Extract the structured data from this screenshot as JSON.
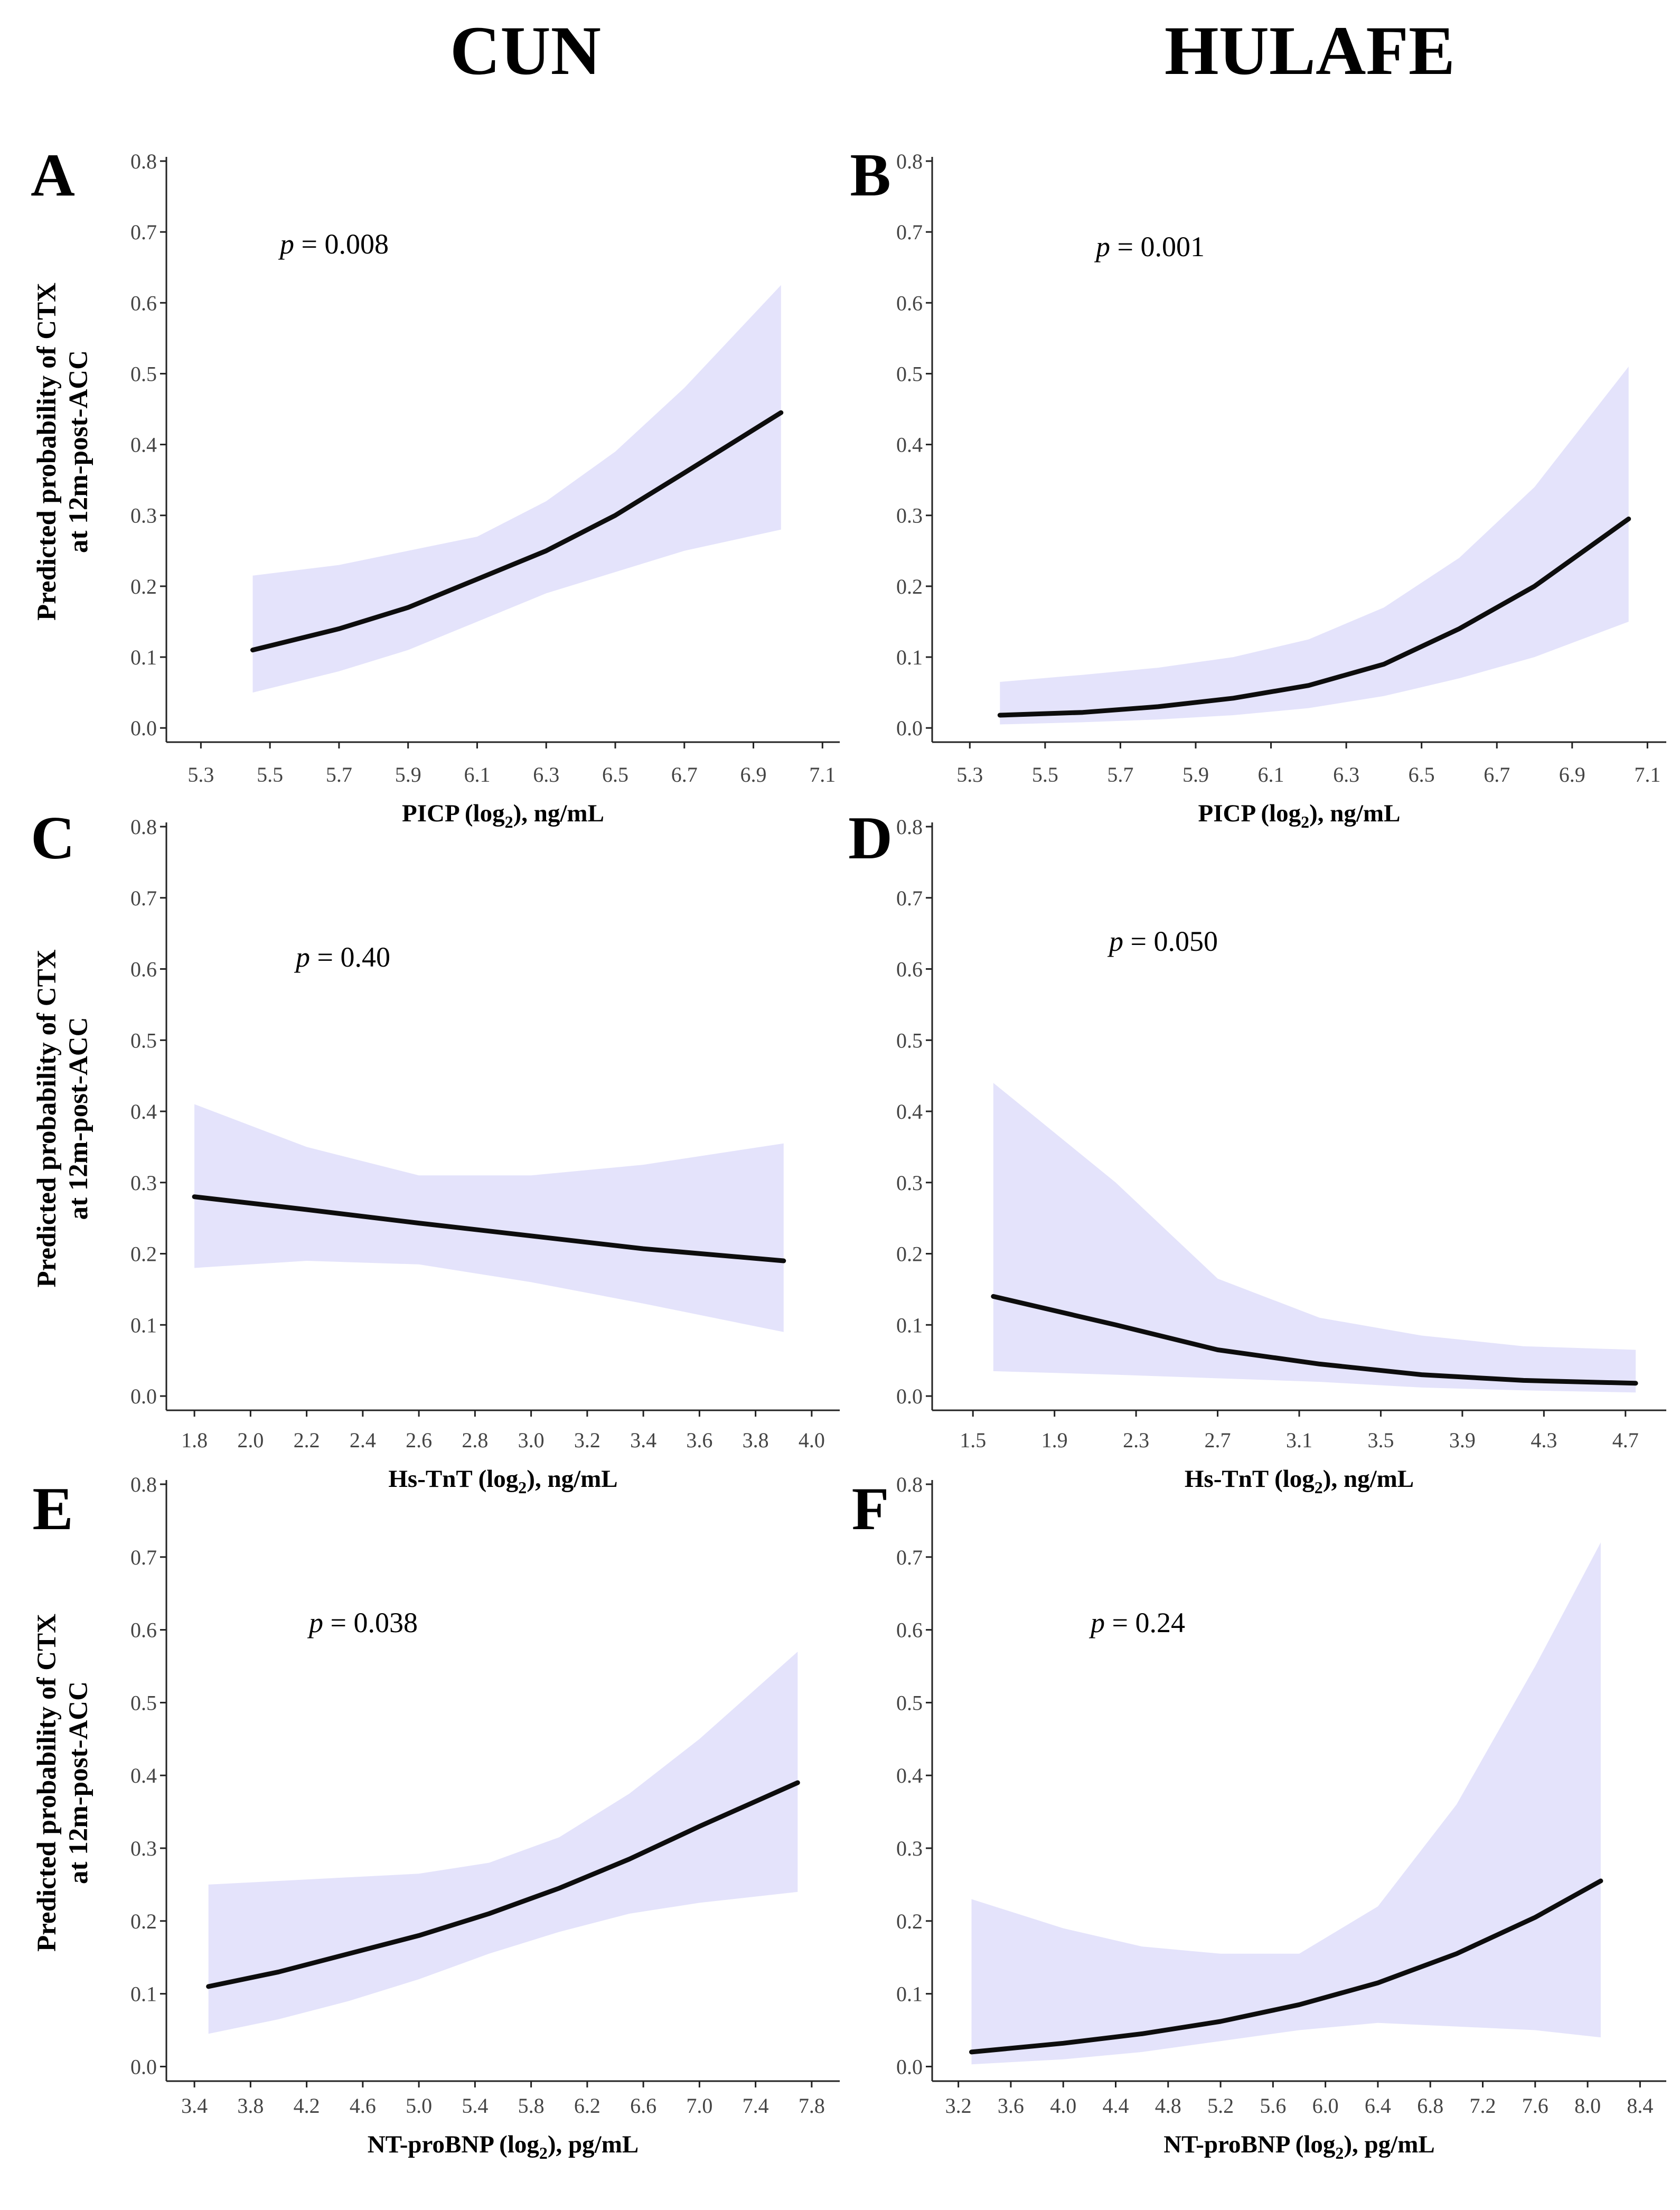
{
  "column_titles": [
    "CUN",
    "HULAFE"
  ],
  "chart_data": [
    {
      "panel": "A",
      "type": "line",
      "cohort": "CUN",
      "xlabel": "PICP (log",
      "xlabel_sub": "2",
      "xlabel_unit": "), ng/mL",
      "ylabel_line1": "Predicted probability of CTX",
      "ylabel_line2": "at 12m-post-ACC",
      "p_symbol": "p",
      "p_text": " = 0.008",
      "xlim": [
        5.2,
        7.15
      ],
      "ylim": [
        -0.02,
        0.8
      ],
      "xticks": [
        5.3,
        5.5,
        5.7,
        5.9,
        6.1,
        6.3,
        6.5,
        6.7,
        6.9,
        7.1
      ],
      "xtick_labels": [
        "5.3",
        "5.5",
        "5.7",
        "5.9",
        "6.1",
        "6.3",
        "6.5",
        "6.7",
        "6.9",
        "7.1"
      ],
      "yticks": [
        0.0,
        0.1,
        0.2,
        0.3,
        0.4,
        0.5,
        0.6,
        0.7,
        0.8
      ],
      "ytick_labels": [
        "0.0",
        "0.1",
        "0.2",
        "0.3",
        "0.4",
        "0.5",
        "0.6",
        "0.7",
        "0.8"
      ],
      "series": [
        {
          "name": "predicted",
          "x": [
            5.45,
            5.7,
            5.9,
            6.1,
            6.3,
            6.5,
            6.7,
            6.98
          ],
          "y": [
            0.11,
            0.14,
            0.17,
            0.21,
            0.25,
            0.3,
            0.36,
            0.445
          ],
          "lower": [
            0.05,
            0.08,
            0.11,
            0.15,
            0.19,
            0.22,
            0.25,
            0.28
          ],
          "upper": [
            0.215,
            0.23,
            0.25,
            0.27,
            0.32,
            0.39,
            0.48,
            0.625
          ]
        }
      ]
    },
    {
      "panel": "B",
      "type": "line",
      "cohort": "HULAFE",
      "xlabel": "PICP (log",
      "xlabel_sub": "2",
      "xlabel_unit": "), ng/mL",
      "ylabel_line1": "",
      "ylabel_line2": "",
      "p_symbol": "p",
      "p_text": " = 0.001",
      "xlim": [
        5.2,
        7.15
      ],
      "ylim": [
        -0.02,
        0.8
      ],
      "xticks": [
        5.3,
        5.5,
        5.7,
        5.9,
        6.1,
        6.3,
        6.5,
        6.7,
        6.9,
        7.1
      ],
      "xtick_labels": [
        "5.3",
        "5.5",
        "5.7",
        "5.9",
        "6.1",
        "6.3",
        "6.5",
        "6.7",
        "6.9",
        "7.1"
      ],
      "yticks": [
        0.0,
        0.1,
        0.2,
        0.3,
        0.4,
        0.5,
        0.6,
        0.7,
        0.8
      ],
      "ytick_labels": [
        "0.0",
        "0.1",
        "0.2",
        "0.3",
        "0.4",
        "0.5",
        "0.6",
        "0.7",
        "0.8"
      ],
      "series": [
        {
          "name": "predicted",
          "x": [
            5.38,
            5.6,
            5.8,
            6.0,
            6.2,
            6.4,
            6.6,
            6.8,
            7.05
          ],
          "y": [
            0.018,
            0.022,
            0.03,
            0.042,
            0.06,
            0.09,
            0.14,
            0.2,
            0.295
          ],
          "lower": [
            0.005,
            0.008,
            0.012,
            0.018,
            0.028,
            0.045,
            0.07,
            0.1,
            0.15
          ],
          "upper": [
            0.065,
            0.075,
            0.085,
            0.1,
            0.125,
            0.17,
            0.24,
            0.34,
            0.51
          ]
        }
      ]
    },
    {
      "panel": "C",
      "type": "line",
      "cohort": "CUN",
      "xlabel": "Hs-TnT  (log",
      "xlabel_sub": "2",
      "xlabel_unit": "), ng/mL",
      "ylabel_line1": "Predicted probability of CTX",
      "ylabel_line2": "at 12m-post-ACC",
      "p_symbol": "p",
      "p_text": " = 0.40",
      "xlim": [
        1.7,
        4.1
      ],
      "ylim": [
        -0.02,
        0.8
      ],
      "xticks": [
        1.8,
        2.0,
        2.2,
        2.4,
        2.6,
        2.8,
        3.0,
        3.2,
        3.4,
        3.6,
        3.8,
        4.0
      ],
      "xtick_labels": [
        "1.8",
        "2.0",
        "2.2",
        "2.4",
        "2.6",
        "2.8",
        "3.0",
        "3.2",
        "3.4",
        "3.6",
        "3.8",
        "4.0"
      ],
      "yticks": [
        0.0,
        0.1,
        0.2,
        0.3,
        0.4,
        0.5,
        0.6,
        0.7,
        0.8
      ],
      "ytick_labels": [
        "0.0",
        "0.1",
        "0.2",
        "0.3",
        "0.4",
        "0.5",
        "0.6",
        "0.7",
        "0.8"
      ],
      "series": [
        {
          "name": "predicted",
          "x": [
            1.8,
            2.2,
            2.6,
            3.0,
            3.4,
            3.9
          ],
          "y": [
            0.28,
            0.262,
            0.243,
            0.225,
            0.207,
            0.19
          ],
          "lower": [
            0.18,
            0.19,
            0.185,
            0.16,
            0.13,
            0.09
          ],
          "upper": [
            0.41,
            0.35,
            0.31,
            0.31,
            0.325,
            0.355
          ]
        }
      ]
    },
    {
      "panel": "D",
      "type": "line",
      "cohort": "HULAFE",
      "xlabel": "Hs-TnT  (log",
      "xlabel_sub": "2",
      "xlabel_unit": "), ng/mL",
      "ylabel_line1": "",
      "ylabel_line2": "",
      "p_symbol": "p",
      "p_text": " = 0.050",
      "xlim": [
        1.3,
        4.9
      ],
      "ylim": [
        -0.02,
        0.8
      ],
      "xticks": [
        1.5,
        1.9,
        2.3,
        2.7,
        3.1,
        3.5,
        3.9,
        4.3,
        4.7
      ],
      "xtick_labels": [
        "1.5",
        "1.9",
        "2.3",
        "2.7",
        "3.1",
        "3.5",
        "3.9",
        "4.3",
        "4.7"
      ],
      "yticks": [
        0.0,
        0.1,
        0.2,
        0.3,
        0.4,
        0.5,
        0.6,
        0.7,
        0.8
      ],
      "ytick_labels": [
        "0.0",
        "0.1",
        "0.2",
        "0.3",
        "0.4",
        "0.5",
        "0.6",
        "0.7",
        "0.8"
      ],
      "series": [
        {
          "name": "predicted",
          "x": [
            1.6,
            2.2,
            2.7,
            3.2,
            3.7,
            4.2,
            4.75
          ],
          "y": [
            0.14,
            0.1,
            0.065,
            0.045,
            0.03,
            0.022,
            0.018
          ],
          "lower": [
            0.035,
            0.03,
            0.025,
            0.02,
            0.012,
            0.008,
            0.005
          ],
          "upper": [
            0.44,
            0.3,
            0.165,
            0.11,
            0.085,
            0.07,
            0.065
          ]
        }
      ]
    },
    {
      "panel": "E",
      "type": "line",
      "cohort": "CUN",
      "xlabel": "NT-proBNP   (log",
      "xlabel_sub": "2",
      "xlabel_unit": "), pg/mL",
      "ylabel_line1": "Predicted probability of CTX",
      "ylabel_line2": "at 12m-post-ACC",
      "p_symbol": "p",
      "p_text": " = 0.038",
      "xlim": [
        3.2,
        8.0
      ],
      "ylim": [
        -0.02,
        0.8
      ],
      "xticks": [
        3.4,
        3.8,
        4.2,
        4.6,
        5.0,
        5.4,
        5.8,
        6.2,
        6.6,
        7.0,
        7.4,
        7.8
      ],
      "xtick_labels": [
        "3.4",
        "3.8",
        "4.2",
        "4.6",
        "5.0",
        "5.4",
        "5.8",
        "6.2",
        "6.6",
        "7.0",
        "7.4",
        "7.8"
      ],
      "yticks": [
        0.0,
        0.1,
        0.2,
        0.3,
        0.4,
        0.5,
        0.6,
        0.7,
        0.8
      ],
      "ytick_labels": [
        "0.0",
        "0.1",
        "0.2",
        "0.3",
        "0.4",
        "0.5",
        "0.6",
        "0.7",
        "0.8"
      ],
      "series": [
        {
          "name": "predicted",
          "x": [
            3.5,
            4.0,
            4.5,
            5.0,
            5.5,
            6.0,
            6.5,
            7.0,
            7.7
          ],
          "y": [
            0.11,
            0.13,
            0.155,
            0.18,
            0.21,
            0.245,
            0.285,
            0.33,
            0.39
          ],
          "lower": [
            0.045,
            0.065,
            0.09,
            0.12,
            0.155,
            0.185,
            0.21,
            0.225,
            0.24
          ],
          "upper": [
            0.25,
            0.255,
            0.26,
            0.265,
            0.28,
            0.315,
            0.375,
            0.45,
            0.57
          ]
        }
      ]
    },
    {
      "panel": "F",
      "type": "line",
      "cohort": "HULAFE",
      "xlabel": "NT-proBNP   (log",
      "xlabel_sub": "2",
      "xlabel_unit": "), pg/mL",
      "ylabel_line1": "",
      "ylabel_line2": "",
      "p_symbol": "p",
      "p_text": " = 0.24",
      "xlim": [
        3.0,
        8.6
      ],
      "ylim": [
        -0.02,
        0.8
      ],
      "xticks": [
        3.2,
        3.6,
        4.0,
        4.4,
        4.8,
        5.2,
        5.6,
        6.0,
        6.4,
        6.8,
        7.2,
        7.6,
        8.0,
        8.4
      ],
      "xtick_labels": [
        "3.2",
        "3.6",
        "4.0",
        "4.4",
        "4.8",
        "5.2",
        "5.6",
        "6.0",
        "6.4",
        "6.8",
        "7.2",
        "7.6",
        "8.0",
        "8.4"
      ],
      "yticks": [
        0.0,
        0.1,
        0.2,
        0.3,
        0.4,
        0.5,
        0.6,
        0.7,
        0.8
      ],
      "ytick_labels": [
        "0.0",
        "0.1",
        "0.2",
        "0.3",
        "0.4",
        "0.5",
        "0.6",
        "0.7",
        "0.8"
      ],
      "series": [
        {
          "name": "predicted",
          "x": [
            3.3,
            4.0,
            4.6,
            5.2,
            5.8,
            6.4,
            7.0,
            7.6,
            8.1
          ],
          "y": [
            0.02,
            0.032,
            0.045,
            0.062,
            0.085,
            0.115,
            0.155,
            0.205,
            0.255
          ],
          "lower": [
            0.003,
            0.01,
            0.02,
            0.035,
            0.05,
            0.06,
            0.055,
            0.05,
            0.04
          ],
          "upper": [
            0.23,
            0.19,
            0.165,
            0.155,
            0.155,
            0.22,
            0.36,
            0.55,
            0.72
          ]
        }
      ]
    }
  ],
  "colors": {
    "band": "#e4e3fb",
    "line": "#0d0d0d",
    "axis": "#222222",
    "text": "#000000"
  }
}
